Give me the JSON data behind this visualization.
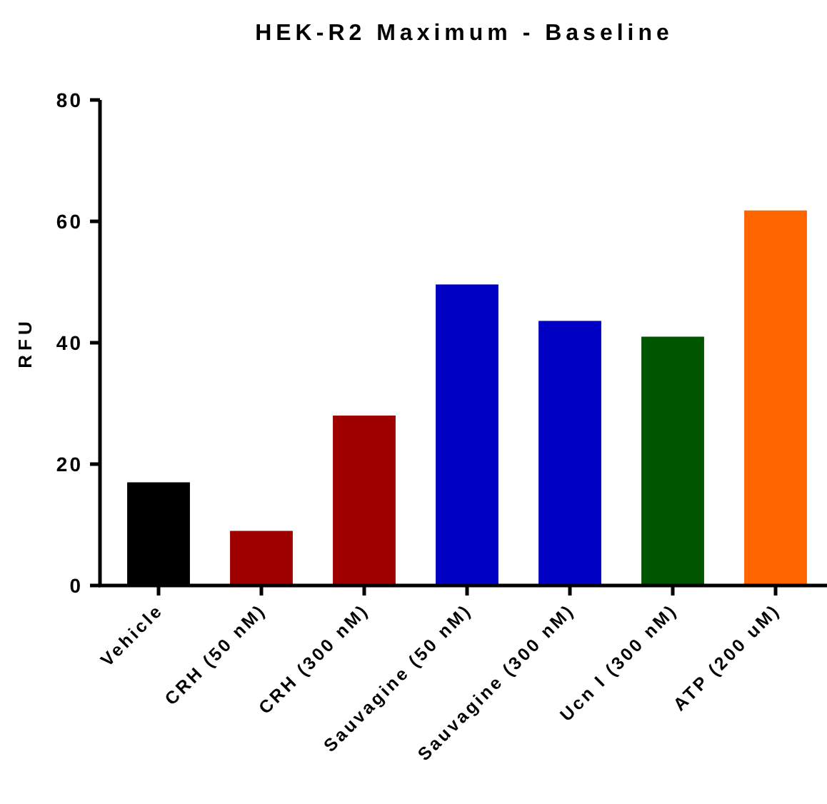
{
  "chart_data": {
    "type": "bar",
    "title": "HEK-R2 Maximum - Baseline",
    "ylabel": "RFU",
    "categories": [
      "Vehicle",
      "CRH (50 nM)",
      "CRH (300 nM)",
      "Sauvagine (50 nM)",
      "Sauvagine (300 nM)",
      "Ucn I (300 nM)",
      "ATP (200 uM)"
    ],
    "values": [
      17.0,
      9.0,
      28.0,
      49.6,
      43.6,
      41.0,
      61.8
    ],
    "colors": [
      "#000000",
      "#9e0000",
      "#9e0000",
      "#0000c4",
      "#0000c4",
      "#005500",
      "#ff6600"
    ],
    "ylim": [
      0,
      80
    ],
    "yticks": [
      0,
      20,
      40,
      60,
      80
    ],
    "grid": false
  }
}
